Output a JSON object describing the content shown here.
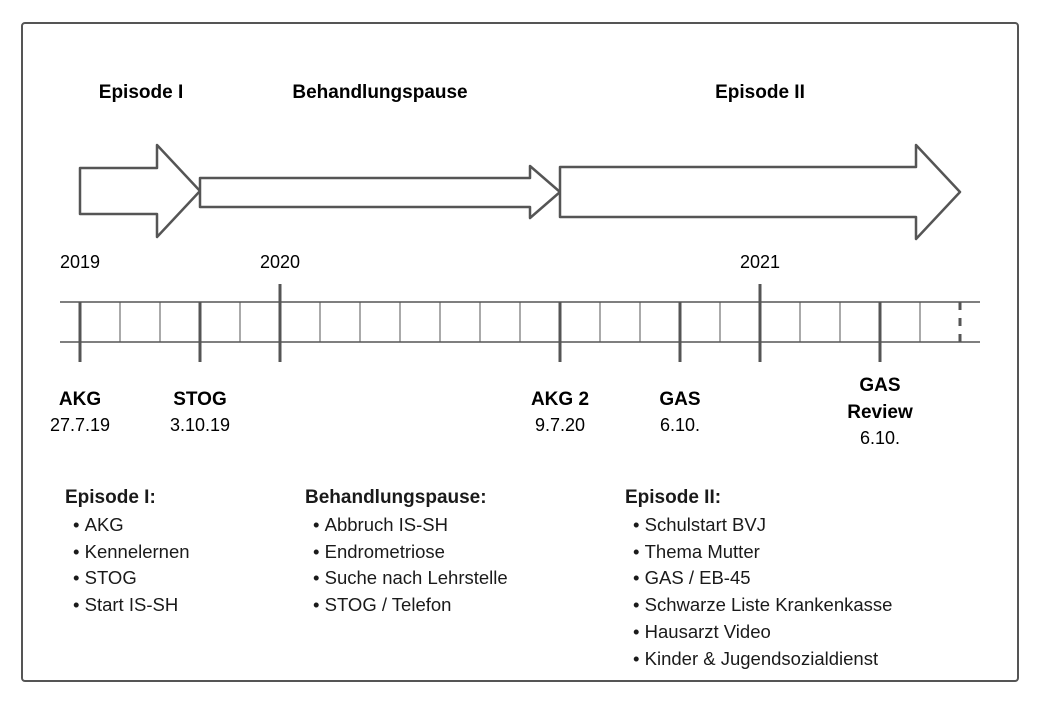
{
  "phases": [
    "Episode I",
    "Behandlungspause",
    "Episode II"
  ],
  "years": [
    "2019",
    "2020",
    "2021"
  ],
  "milestones": [
    {
      "name": "AKG",
      "date": "27.7.19"
    },
    {
      "name": "STOG",
      "date": "3.10.19"
    },
    {
      "name": "AKG 2",
      "date": "9.7.20"
    },
    {
      "name": "GAS",
      "date": "6.10."
    },
    {
      "name_line1": "GAS",
      "name_line2": "Review",
      "date": "6.10."
    }
  ],
  "lists": [
    {
      "heading": "Episode I:",
      "items": [
        "AKG",
        "Kennelernen",
        "STOG",
        "Start IS-SH"
      ]
    },
    {
      "heading": "Behandlungspause:",
      "items": [
        "Abbruch IS-SH",
        "Endrometriose",
        "Suche nach Lehrstelle",
        "STOG / Telefon"
      ]
    },
    {
      "heading": "Episode II:",
      "items": [
        "Schulstart BVJ",
        "Thema Mutter",
        "GAS / EB-45",
        "Schwarze Liste Krankenkasse",
        "Hausarzt Video",
        "Kinder & Jugendsozialdienst"
      ]
    }
  ],
  "colors": {
    "stroke": "#555555",
    "text": "#1a1a1a",
    "background": "#ffffff"
  }
}
